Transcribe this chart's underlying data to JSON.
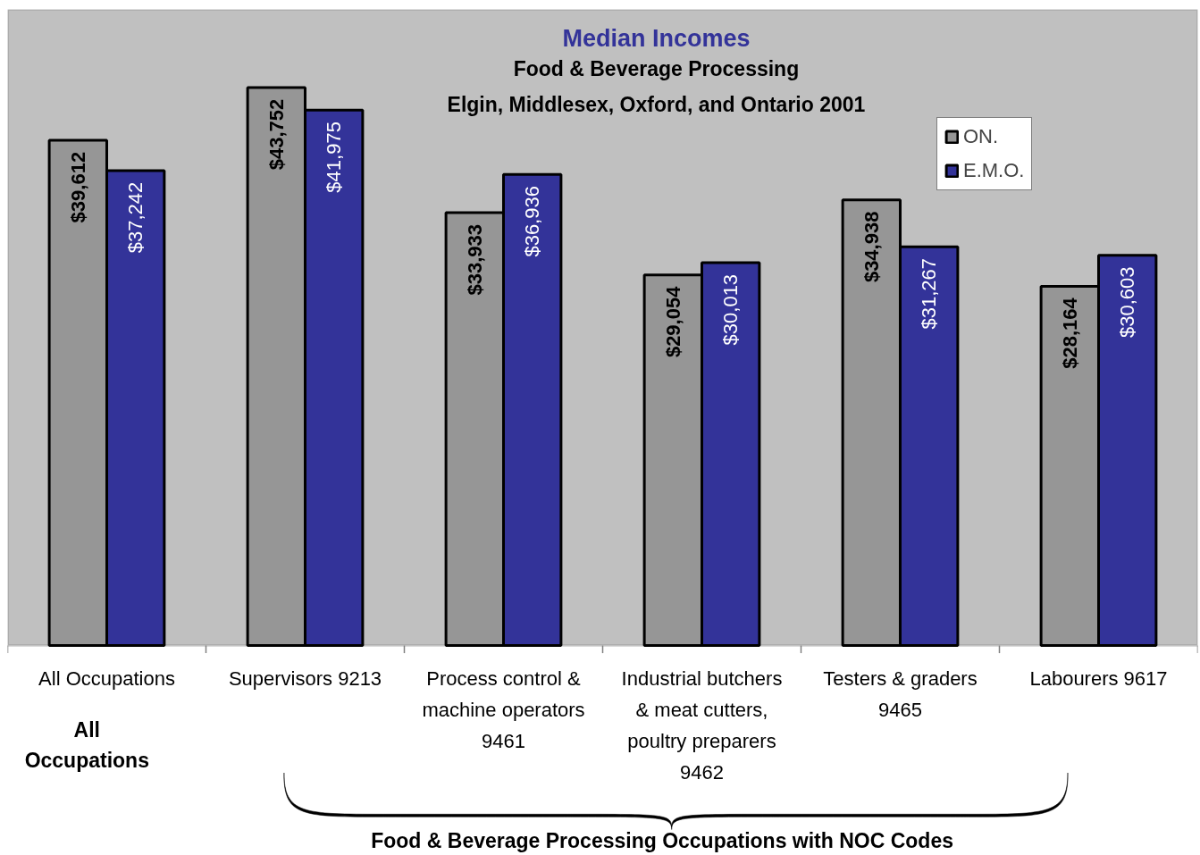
{
  "chart_data": {
    "type": "bar",
    "title": "Median Incomes",
    "subtitle": "Food & Beverage Processing\nElgin, Middlesex, Oxford, and Ontario 2001",
    "categories": [
      "All Occupations",
      "Supervisors 9213",
      "Process control & machine operators 9461",
      "Industrial butchers & meat cutters, poultry preparers 9462",
      "Testers & graders 9465",
      "Labourers 9617"
    ],
    "series": [
      {
        "name": "ON.",
        "color": "#969696",
        "values": [
          39612,
          43752,
          33933,
          29054,
          34938,
          28164
        ],
        "value_labels": [
          "$39,612",
          "$43,752",
          "$33,933",
          "$29,054",
          "$34,938",
          "$28,164"
        ]
      },
      {
        "name": "E.M.O.",
        "color": "#333399",
        "values": [
          37242,
          41975,
          36936,
          30013,
          31267,
          30603
        ],
        "value_labels": [
          "$37,242",
          "$41,975",
          "$36,936",
          "$30,013",
          "$31,267",
          "$30,603"
        ]
      }
    ],
    "annotations": [
      "All Occupations",
      "Food & Beverage Processing Occupations with NOC Codes"
    ],
    "legend": "top right",
    "grid": false
  }
}
